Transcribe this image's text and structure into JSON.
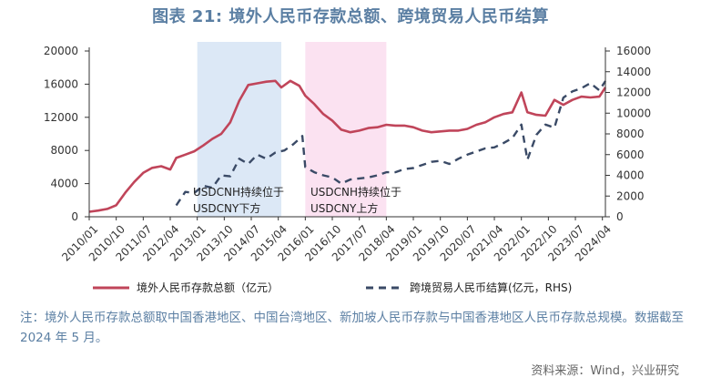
{
  "title": "图表 21: 境外人民币存款总额、跨境贸易人民币结算",
  "note": "注：境外人民币存款总额取中国香港地区、中国台湾地区、新加坡人民币存款与中国香港地区人民币存款总规模。数据截至 2024 年 5 月。",
  "source": "资料来源：Wind，兴业研究",
  "colors": {
    "deposit": "#c0455a",
    "settlement": "#3a4a66",
    "band_blue": "#dce8f6",
    "band_pink": "#fbe2f1",
    "title": "#5b7fa3"
  },
  "annotations": [
    {
      "lines": [
        "USDCNH持续位于",
        "USDCNY下方"
      ]
    },
    {
      "lines": [
        "USDCNH持续位于",
        "USDCNY上方"
      ]
    }
  ],
  "chart_data": {
    "type": "line",
    "x_type": "date",
    "x_range": [
      "2010-01",
      "2024-05"
    ],
    "x_tick_labels": [
      "2010/01",
      "2010/10",
      "2011/07",
      "2012/04",
      "2013/01",
      "2013/10",
      "2014/07",
      "2015/04",
      "2016/01",
      "2016/10",
      "2017/07",
      "2018/04",
      "2019/01",
      "2019/10",
      "2020/07",
      "2021/04",
      "2022/01",
      "2022/10",
      "2023/07",
      "2024/04"
    ],
    "y_left": {
      "range": [
        0,
        20000
      ],
      "ticks": [
        "0",
        "4000",
        "8000",
        "12000",
        "16000",
        "20000"
      ]
    },
    "y_right": {
      "range": [
        0,
        16000
      ],
      "ticks": [
        "0",
        "2000",
        "4000",
        "6000",
        "8000",
        "10000",
        "12000",
        "14000",
        "16000"
      ]
    },
    "shaded_periods": [
      {
        "start": "2013-01",
        "end": "2015-05"
      },
      {
        "start": "2016-01",
        "end": "2018-04"
      }
    ],
    "series": [
      {
        "name": "境外人民币存款总额（亿元）",
        "axis": "left",
        "style": "solid",
        "points": [
          [
            "2010-01",
            600
          ],
          [
            "2010-04",
            750
          ],
          [
            "2010-07",
            950
          ],
          [
            "2010-10",
            1400
          ],
          [
            "2011-01",
            2900
          ],
          [
            "2011-04",
            4200
          ],
          [
            "2011-07",
            5300
          ],
          [
            "2011-10",
            5900
          ],
          [
            "2012-01",
            6100
          ],
          [
            "2012-04",
            5700
          ],
          [
            "2012-06",
            7100
          ],
          [
            "2012-09",
            7500
          ],
          [
            "2012-12",
            7900
          ],
          [
            "2013-03",
            8600
          ],
          [
            "2013-06",
            9400
          ],
          [
            "2013-09",
            10000
          ],
          [
            "2013-12",
            11400
          ],
          [
            "2014-03",
            14000
          ],
          [
            "2014-06",
            15900
          ],
          [
            "2014-09",
            16100
          ],
          [
            "2014-12",
            16300
          ],
          [
            "2015-03",
            16400
          ],
          [
            "2015-05",
            15600
          ],
          [
            "2015-08",
            16400
          ],
          [
            "2015-11",
            15800
          ],
          [
            "2016-01",
            14600
          ],
          [
            "2016-04",
            13600
          ],
          [
            "2016-07",
            12400
          ],
          [
            "2016-10",
            11600
          ],
          [
            "2017-01",
            10500
          ],
          [
            "2017-04",
            10200
          ],
          [
            "2017-07",
            10400
          ],
          [
            "2017-10",
            10700
          ],
          [
            "2018-01",
            10800
          ],
          [
            "2018-04",
            11100
          ],
          [
            "2018-07",
            11000
          ],
          [
            "2018-10",
            11000
          ],
          [
            "2019-01",
            10800
          ],
          [
            "2019-04",
            10400
          ],
          [
            "2019-07",
            10200
          ],
          [
            "2019-10",
            10300
          ],
          [
            "2020-01",
            10400
          ],
          [
            "2020-04",
            10400
          ],
          [
            "2020-07",
            10600
          ],
          [
            "2020-10",
            11100
          ],
          [
            "2021-01",
            11400
          ],
          [
            "2021-04",
            12000
          ],
          [
            "2021-07",
            12400
          ],
          [
            "2021-10",
            12600
          ],
          [
            "2022-01",
            15000
          ],
          [
            "2022-03",
            12600
          ],
          [
            "2022-06",
            12300
          ],
          [
            "2022-09",
            12200
          ],
          [
            "2022-12",
            14100
          ],
          [
            "2023-03",
            13500
          ],
          [
            "2023-06",
            14100
          ],
          [
            "2023-09",
            14500
          ],
          [
            "2023-12",
            14400
          ],
          [
            "2024-03",
            14500
          ],
          [
            "2024-05",
            15600
          ]
        ]
      },
      {
        "name": "跨境贸易人民币结算(亿元，RHS)",
        "axis": "right",
        "style": "dashed",
        "points": [
          [
            "2012-06",
            1100
          ],
          [
            "2012-09",
            2400
          ],
          [
            "2012-12",
            2300
          ],
          [
            "2013-03",
            3000
          ],
          [
            "2013-06",
            2800
          ],
          [
            "2013-09",
            4000
          ],
          [
            "2013-12",
            3900
          ],
          [
            "2014-03",
            5600
          ],
          [
            "2014-06",
            5100
          ],
          [
            "2014-09",
            6000
          ],
          [
            "2014-12",
            5600
          ],
          [
            "2015-03",
            6200
          ],
          [
            "2015-06",
            6400
          ],
          [
            "2015-09",
            7000
          ],
          [
            "2015-12",
            7800
          ],
          [
            "2016-01",
            4800
          ],
          [
            "2016-04",
            4300
          ],
          [
            "2016-07",
            4000
          ],
          [
            "2016-10",
            3800
          ],
          [
            "2017-01",
            3200
          ],
          [
            "2017-04",
            3600
          ],
          [
            "2017-07",
            3700
          ],
          [
            "2017-10",
            3800
          ],
          [
            "2018-01",
            4000
          ],
          [
            "2018-04",
            4300
          ],
          [
            "2018-07",
            4300
          ],
          [
            "2018-10",
            4600
          ],
          [
            "2019-01",
            4700
          ],
          [
            "2019-04",
            5000
          ],
          [
            "2019-07",
            5300
          ],
          [
            "2019-10",
            5400
          ],
          [
            "2020-01",
            5100
          ],
          [
            "2020-04",
            5600
          ],
          [
            "2020-07",
            6000
          ],
          [
            "2020-10",
            6300
          ],
          [
            "2021-01",
            6600
          ],
          [
            "2021-04",
            6700
          ],
          [
            "2021-07",
            7100
          ],
          [
            "2021-10",
            7600
          ],
          [
            "2022-01",
            8900
          ],
          [
            "2022-03",
            5500
          ],
          [
            "2022-06",
            7900
          ],
          [
            "2022-09",
            8900
          ],
          [
            "2022-12",
            8600
          ],
          [
            "2023-03",
            11500
          ],
          [
            "2023-06",
            12100
          ],
          [
            "2023-09",
            12400
          ],
          [
            "2023-12",
            12900
          ],
          [
            "2024-03",
            12200
          ],
          [
            "2024-05",
            13100
          ]
        ]
      }
    ]
  }
}
